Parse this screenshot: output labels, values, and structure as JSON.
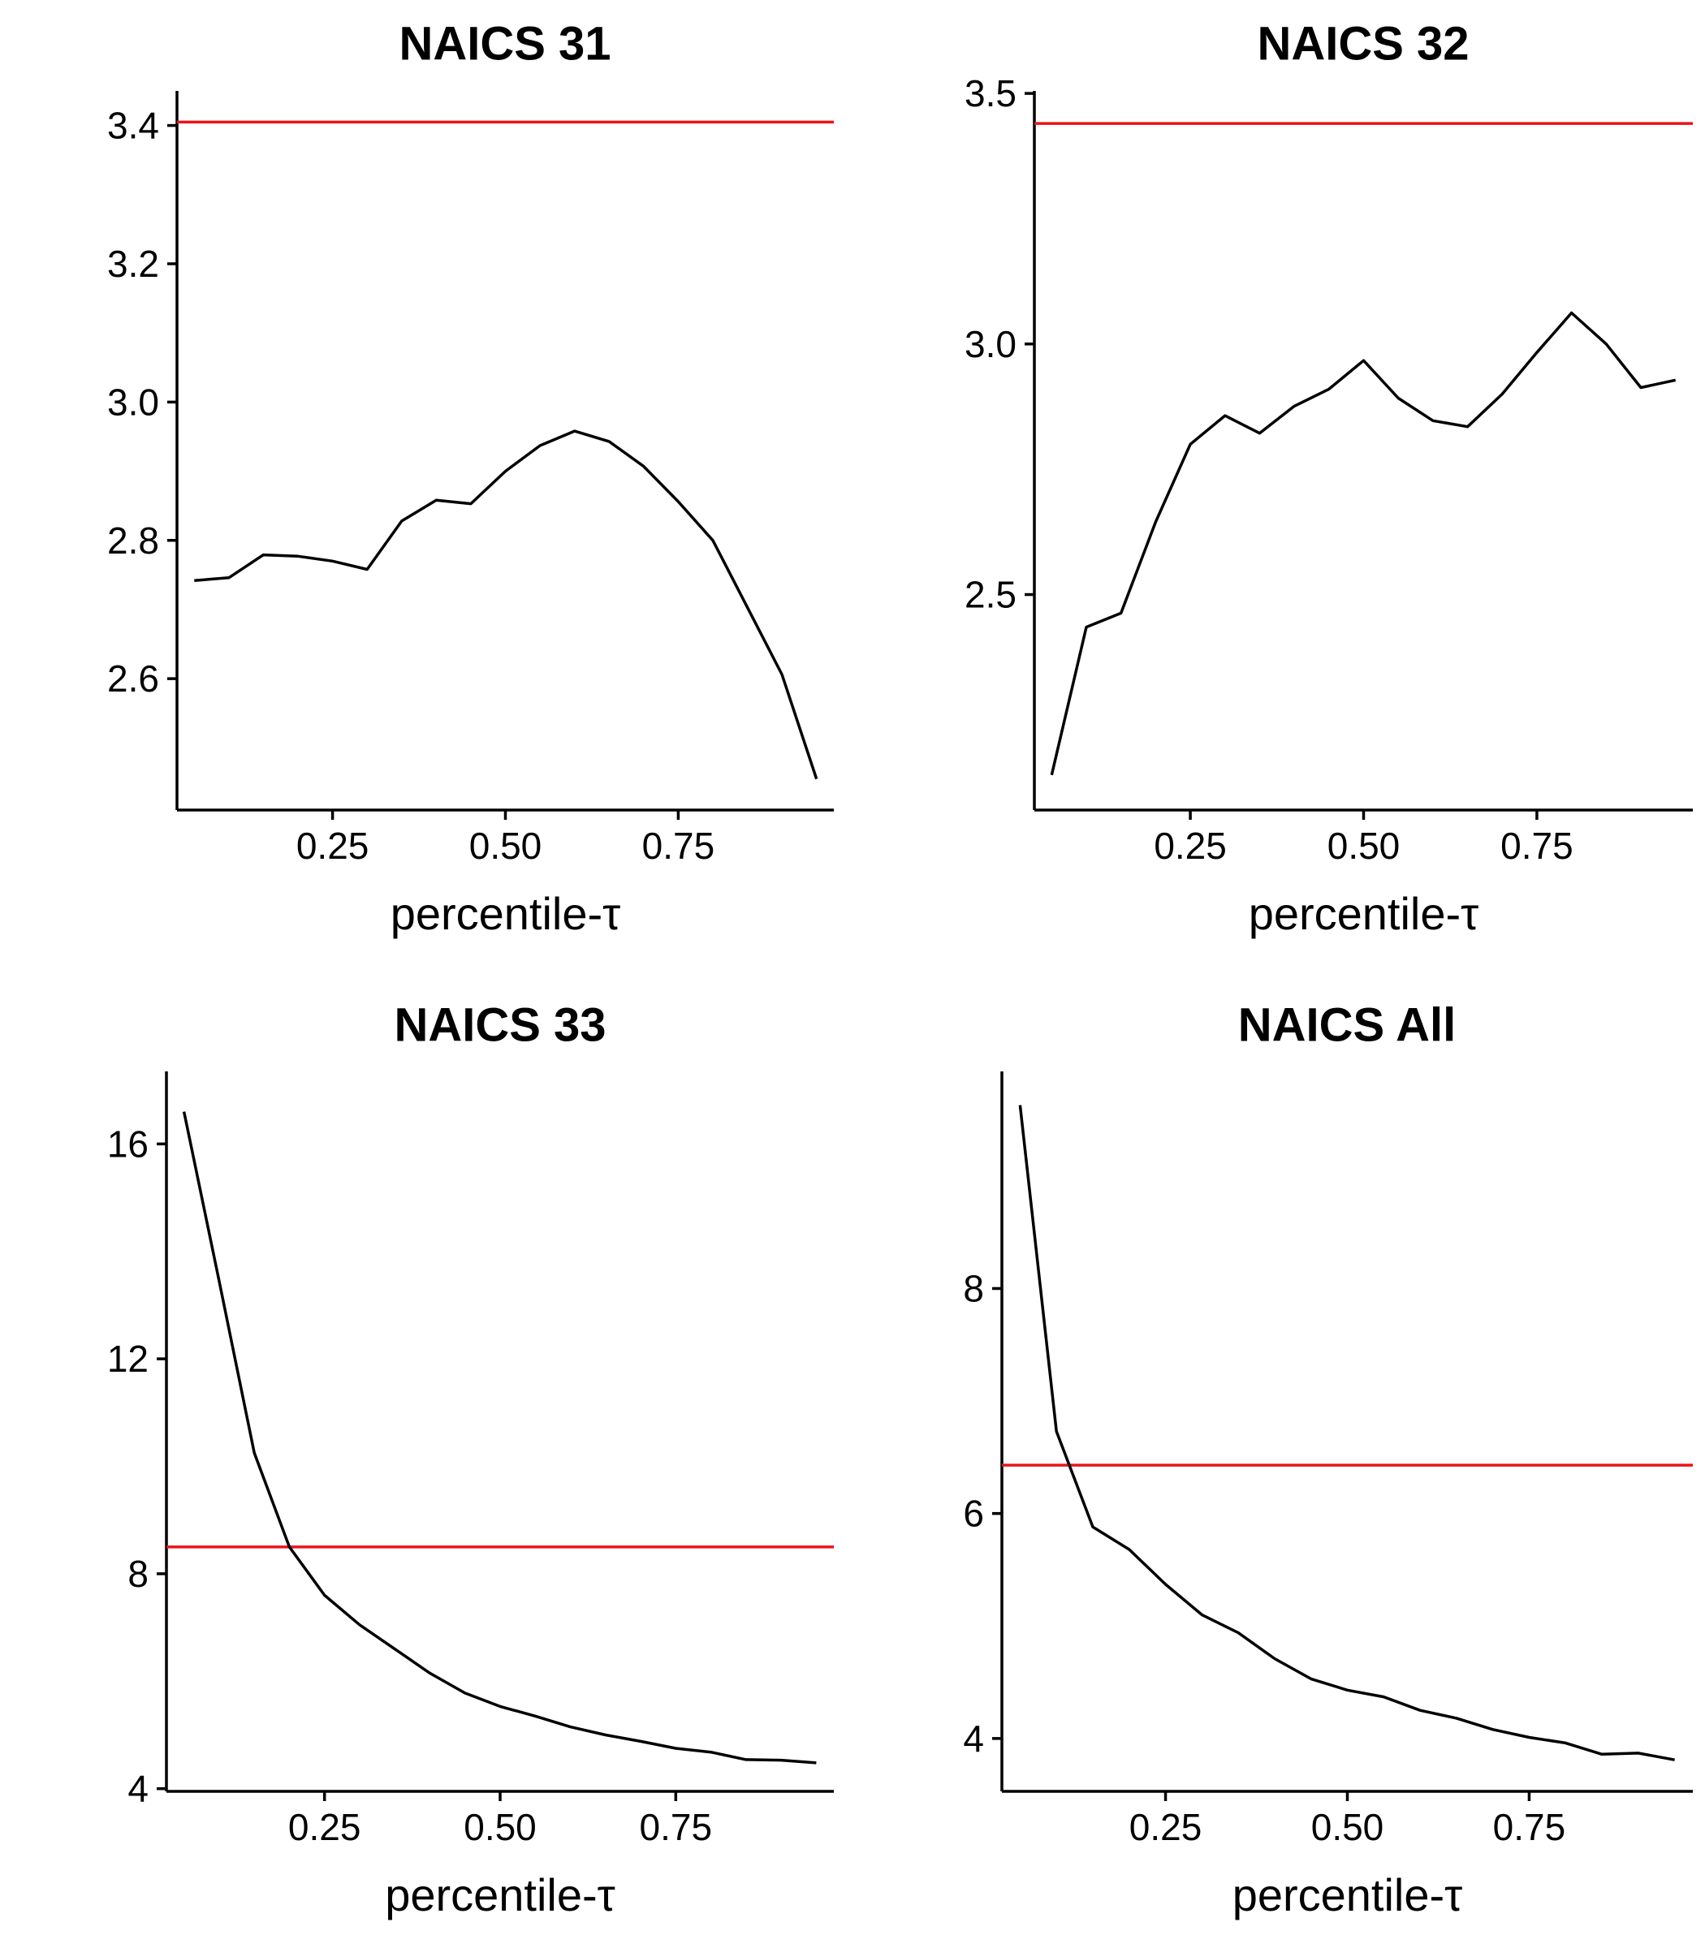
{
  "chart_data": [
    {
      "type": "line",
      "title": "NAICS 31",
      "xlabel": "percentile-τ",
      "ylabel": "",
      "xlim": [
        0.025,
        0.975
      ],
      "ylim": [
        2.41,
        3.45
      ],
      "x_ticks": [
        0.25,
        0.5,
        0.75
      ],
      "x_tick_labels": [
        "0.25",
        "0.50",
        "0.75"
      ],
      "y_ticks": [
        2.6,
        2.8,
        3.0,
        3.2,
        3.4
      ],
      "y_tick_labels": [
        "2.6",
        "2.8",
        "3.0",
        "3.2",
        "3.4"
      ],
      "grid": false,
      "reference_line": {
        "y": 3.405,
        "color": "#e8141b"
      },
      "series": [
        {
          "color": "#000000",
          "x": [
            0.05,
            0.1,
            0.15,
            0.2,
            0.25,
            0.3,
            0.35,
            0.4,
            0.45,
            0.5,
            0.55,
            0.6,
            0.65,
            0.7,
            0.75,
            0.8,
            0.85,
            0.9,
            0.95
          ],
          "y": [
            2.742,
            2.746,
            2.779,
            2.777,
            2.77,
            2.758,
            2.828,
            2.858,
            2.853,
            2.9,
            2.937,
            2.958,
            2.943,
            2.907,
            2.856,
            2.8,
            2.703,
            2.606,
            2.455
          ]
        }
      ]
    },
    {
      "type": "line",
      "title": "NAICS 32",
      "xlabel": "percentile-τ",
      "ylabel": "",
      "xlim": [
        0.025,
        0.975
      ],
      "ylim": [
        2.07,
        3.505
      ],
      "x_ticks": [
        0.25,
        0.5,
        0.75
      ],
      "x_tick_labels": [
        "0.25",
        "0.50",
        "0.75"
      ],
      "y_ticks": [
        2.5,
        3.0,
        3.5
      ],
      "y_tick_labels": [
        "2.5",
        "3.0",
        "3.5"
      ],
      "grid": false,
      "reference_line": {
        "y": 3.44,
        "color": "#e8141b"
      },
      "series": [
        {
          "color": "#000000",
          "x": [
            0.05,
            0.1,
            0.15,
            0.2,
            0.25,
            0.3,
            0.35,
            0.4,
            0.45,
            0.5,
            0.55,
            0.6,
            0.65,
            0.7,
            0.75,
            0.8,
            0.85,
            0.9,
            0.95
          ],
          "y": [
            2.14,
            2.435,
            2.463,
            2.645,
            2.8,
            2.857,
            2.822,
            2.876,
            2.91,
            2.967,
            2.892,
            2.847,
            2.835,
            2.9,
            2.983,
            3.062,
            3.0,
            2.913,
            2.928
          ]
        }
      ]
    },
    {
      "type": "line",
      "title": "NAICS 33",
      "xlabel": "percentile-τ",
      "ylabel": "",
      "xlim": [
        0.025,
        0.975
      ],
      "ylim": [
        3.95,
        17.35
      ],
      "x_ticks": [
        0.25,
        0.5,
        0.75
      ],
      "x_tick_labels": [
        "0.25",
        "0.50",
        "0.75"
      ],
      "y_ticks": [
        4,
        8,
        12,
        16
      ],
      "y_tick_labels": [
        "4",
        "8",
        "12",
        "16"
      ],
      "grid": false,
      "reference_line": {
        "y": 8.5,
        "color": "#e8141b"
      },
      "series": [
        {
          "color": "#000000",
          "x": [
            0.05,
            0.1,
            0.15,
            0.2,
            0.25,
            0.3,
            0.35,
            0.4,
            0.45,
            0.5,
            0.55,
            0.6,
            0.65,
            0.7,
            0.75,
            0.8,
            0.85,
            0.9,
            0.95
          ],
          "y": [
            16.6,
            13.45,
            10.25,
            8.5,
            7.6,
            7.05,
            6.6,
            6.15,
            5.78,
            5.53,
            5.35,
            5.15,
            5.0,
            4.88,
            4.75,
            4.68,
            4.54,
            4.53,
            4.48
          ]
        }
      ]
    },
    {
      "type": "line",
      "title": "NAICS All",
      "xlabel": "percentile-τ",
      "ylabel": "",
      "xlim": [
        0.025,
        0.975
      ],
      "ylim": [
        3.53,
        9.93
      ],
      "x_ticks": [
        0.25,
        0.5,
        0.75
      ],
      "x_tick_labels": [
        "0.25",
        "0.50",
        "0.75"
      ],
      "y_ticks": [
        4,
        6,
        8
      ],
      "y_tick_labels": [
        "4",
        "6",
        "8"
      ],
      "grid": false,
      "reference_line": {
        "y": 6.43,
        "color": "#e8141b"
      },
      "series": [
        {
          "color": "#000000",
          "x": [
            0.05,
            0.1,
            0.15,
            0.2,
            0.25,
            0.3,
            0.35,
            0.4,
            0.45,
            0.5,
            0.55,
            0.6,
            0.65,
            0.7,
            0.75,
            0.8,
            0.85,
            0.9,
            0.95
          ],
          "y": [
            9.63,
            6.73,
            5.88,
            5.68,
            5.37,
            5.1,
            4.94,
            4.71,
            4.53,
            4.43,
            4.37,
            4.25,
            4.18,
            4.08,
            4.01,
            3.96,
            3.86,
            3.87,
            3.81
          ]
        }
      ]
    }
  ]
}
